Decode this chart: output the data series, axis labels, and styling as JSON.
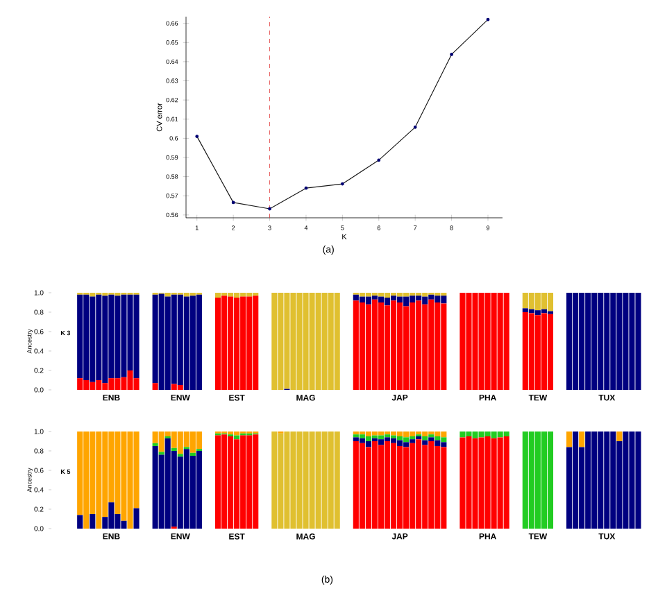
{
  "chart_data": [
    {
      "type": "line",
      "xlabel": "K",
      "ylabel": "CV error",
      "x": [
        1,
        2,
        3,
        4,
        5,
        6,
        7,
        8,
        9
      ],
      "xlim": [
        0.7,
        9.4
      ],
      "ylim": [
        0.5585,
        0.6635
      ],
      "xticks": [
        1,
        2,
        3,
        4,
        5,
        6,
        7,
        8,
        9
      ],
      "yticks": [
        0.56,
        0.57,
        0.58,
        0.59,
        0.6,
        0.61,
        0.62,
        0.63,
        0.64,
        0.65,
        0.66
      ],
      "marker": "circle",
      "line_style": "solid",
      "series": [
        {
          "color": "#1a1a1a",
          "values": [
            0.601,
            0.5665,
            0.5632,
            0.574,
            0.5762,
            0.5886,
            0.6058,
            0.6438,
            0.662
          ]
        }
      ],
      "ref_lines": [
        {
          "axis": "x",
          "value": 3,
          "color": "#e03030",
          "line_style": "dashed"
        }
      ],
      "annotations": [
        "(a)"
      ]
    },
    {
      "type": "bar",
      "stacked": true,
      "title": "K 3",
      "ylabel": "Ancestry",
      "ylim": [
        0,
        1
      ],
      "yticks": [
        {
          "value": 0,
          "label": "0.0"
        },
        {
          "value": 0.2,
          "label": "0.2"
        },
        {
          "value": 0.4,
          "label": "0.4"
        },
        {
          "value": 0.6,
          "label": "0.6"
        },
        {
          "value": 0.8,
          "label": "0.8"
        },
        {
          "value": 1,
          "label": "1.0"
        }
      ],
      "categories": [
        null,
        null,
        null,
        null,
        null,
        "ENB",
        null,
        null,
        null,
        null,
        null,
        null,
        null,
        null,
        null,
        null,
        "ENW",
        null,
        null,
        null,
        null,
        null,
        null,
        null,
        null,
        "EST",
        null,
        null,
        null,
        null,
        null,
        null,
        null,
        null,
        null,
        null,
        "MAG",
        null,
        null,
        null,
        null,
        null,
        null,
        null,
        null,
        null,
        null,
        null,
        null,
        null,
        null,
        "JAP",
        null,
        null,
        null,
        null,
        null,
        null,
        null,
        null,
        null,
        null,
        null,
        null,
        null,
        "PHA",
        null,
        null,
        null,
        null,
        null,
        null,
        null,
        "TEW",
        null,
        null,
        null,
        null,
        null,
        null,
        null,
        null,
        null,
        null,
        "TUX",
        null,
        null,
        null,
        null,
        null
      ],
      "series": [
        {
          "color": "#ff0000",
          "values": [
            0.12,
            0.1,
            0.08,
            0.1,
            0.07,
            0.12,
            0.12,
            0.13,
            0.2,
            0.12,
            null,
            null,
            0.07,
            0,
            0,
            0.06,
            0.05,
            0,
            0,
            0,
            null,
            null,
            0.95,
            0.97,
            0.96,
            0.95,
            0.96,
            0.96,
            0.97,
            null,
            null,
            0,
            0,
            0,
            0,
            0,
            0,
            0,
            0,
            0,
            0,
            0,
            null,
            null,
            0.92,
            0.9,
            0.88,
            0.93,
            0.9,
            0.87,
            0.92,
            0.9,
            0.86,
            0.9,
            0.92,
            0.88,
            0.93,
            0.9,
            0.89,
            null,
            null,
            1,
            1,
            1,
            1,
            1,
            1,
            1,
            1,
            null,
            null,
            0.8,
            0.79,
            0.77,
            0.79,
            0.78,
            null,
            null,
            0,
            0,
            0,
            0,
            0,
            0,
            0,
            0,
            0,
            0,
            0,
            0
          ]
        },
        {
          "color": "#000080",
          "values": [
            0.86,
            0.88,
            0.88,
            0.88,
            0.9,
            0.86,
            0.85,
            0.85,
            0.78,
            0.86,
            null,
            null,
            0.91,
            0.99,
            0.96,
            0.92,
            0.93,
            0.96,
            0.97,
            0.98,
            null,
            null,
            0,
            0,
            0,
            0,
            0,
            0,
            0,
            null,
            null,
            0,
            0,
            0.01,
            0,
            0,
            0,
            0,
            0,
            0,
            0,
            0,
            null,
            null,
            0.06,
            0.06,
            0.08,
            0.04,
            0.06,
            0.08,
            0.05,
            0.06,
            0.1,
            0.07,
            0.05,
            0.08,
            0.05,
            0.07,
            0.08,
            null,
            null,
            0,
            0,
            0,
            0,
            0,
            0,
            0,
            0,
            null,
            null,
            0.04,
            0.04,
            0.05,
            0.04,
            0.03,
            null,
            null,
            1,
            1,
            1,
            1,
            1,
            1,
            1,
            1,
            1,
            1,
            1,
            1
          ]
        },
        {
          "color": "#e0c030",
          "values": [
            0.02,
            0.02,
            0.04,
            0.02,
            0.03,
            0.02,
            0.03,
            0.02,
            0.02,
            0.02,
            null,
            null,
            0.02,
            0.01,
            0.04,
            0.02,
            0.02,
            0.04,
            0.03,
            0.02,
            null,
            null,
            0.05,
            0.03,
            0.04,
            0.05,
            0.04,
            0.04,
            0.03,
            null,
            null,
            1,
            1,
            0.99,
            1,
            1,
            1,
            1,
            1,
            1,
            1,
            1,
            null,
            null,
            0.02,
            0.04,
            0.04,
            0.03,
            0.04,
            0.05,
            0.03,
            0.04,
            0.04,
            0.03,
            0.03,
            0.04,
            0.02,
            0.03,
            0.03,
            null,
            null,
            0,
            0,
            0,
            0,
            0,
            0,
            0,
            0,
            null,
            null,
            0.16,
            0.17,
            0.18,
            0.17,
            0.19,
            null,
            null,
            0,
            0,
            0,
            0,
            0,
            0,
            0,
            0,
            0,
            0,
            0,
            0
          ]
        }
      ]
    },
    {
      "type": "bar",
      "stacked": true,
      "title": "K 5",
      "ylabel": "Ancestry",
      "ylim": [
        0,
        1
      ],
      "yticks": [
        {
          "value": 0,
          "label": "0.0"
        },
        {
          "value": 0.2,
          "label": "0.2"
        },
        {
          "value": 0.4,
          "label": "0.4"
        },
        {
          "value": 0.6,
          "label": "0.6"
        },
        {
          "value": 0.8,
          "label": "0.8"
        },
        {
          "value": 1,
          "label": "1.0"
        }
      ],
      "categories": [
        null,
        null,
        null,
        null,
        null,
        "ENB",
        null,
        null,
        null,
        null,
        null,
        null,
        null,
        null,
        null,
        null,
        "ENW",
        null,
        null,
        null,
        null,
        null,
        null,
        null,
        null,
        "EST",
        null,
        null,
        null,
        null,
        null,
        null,
        null,
        null,
        null,
        null,
        "MAG",
        null,
        null,
        null,
        null,
        null,
        null,
        null,
        null,
        null,
        null,
        null,
        null,
        null,
        null,
        "JAP",
        null,
        null,
        null,
        null,
        null,
        null,
        null,
        null,
        null,
        null,
        null,
        null,
        null,
        "PHA",
        null,
        null,
        null,
        null,
        null,
        null,
        null,
        "TEW",
        null,
        null,
        null,
        null,
        null,
        null,
        null,
        null,
        null,
        null,
        "TUX",
        null,
        null,
        null,
        null,
        null
      ],
      "series": [
        {
          "color": "#ff0000",
          "values": [
            0,
            0,
            0,
            0,
            0,
            0,
            0,
            0,
            0,
            0,
            null,
            null,
            0,
            0,
            0,
            0.02,
            0,
            0,
            0,
            0,
            null,
            null,
            0.96,
            0.97,
            0.95,
            0.92,
            0.96,
            0.96,
            0.97,
            null,
            null,
            0,
            0,
            0,
            0,
            0,
            0,
            0,
            0,
            0,
            0,
            0,
            null,
            null,
            0.9,
            0.88,
            0.84,
            0.9,
            0.86,
            0.9,
            0.88,
            0.85,
            0.84,
            0.88,
            0.92,
            0.86,
            0.9,
            0.85,
            0.84,
            null,
            null,
            0.94,
            0.95,
            0.93,
            0.94,
            0.95,
            0.93,
            0.94,
            0.95,
            null,
            null,
            0,
            0,
            0,
            0,
            0,
            null,
            null,
            0,
            0,
            0,
            0,
            0,
            0,
            0,
            0,
            0,
            0,
            0,
            0
          ]
        },
        {
          "color": "#000080",
          "values": [
            0.14,
            0,
            0.15,
            0,
            0.12,
            0.27,
            0.15,
            0.08,
            0,
            0.21,
            null,
            null,
            0.85,
            0.76,
            0.93,
            0.78,
            0.74,
            0.82,
            0.75,
            0.8,
            null,
            null,
            0,
            0,
            0,
            0,
            0,
            0,
            0,
            null,
            null,
            0,
            0,
            0,
            0,
            0,
            0,
            0,
            0,
            0,
            0,
            0,
            null,
            null,
            0.04,
            0.05,
            0.06,
            0.03,
            0.06,
            0.04,
            0.05,
            0.06,
            0.05,
            0.04,
            0.03,
            0.05,
            0.04,
            0.06,
            0.05,
            null,
            null,
            0,
            0,
            0,
            0,
            0,
            0,
            0,
            0,
            null,
            null,
            0,
            0,
            0,
            0,
            0,
            null,
            null,
            0.84,
            1,
            0.84,
            1,
            1,
            1,
            1,
            1,
            0.9,
            1,
            1,
            1
          ]
        },
        {
          "color": "#e0c030",
          "values": [
            0,
            0,
            0,
            0,
            0,
            0,
            0,
            0,
            0,
            0,
            null,
            null,
            0,
            0,
            0,
            0,
            0,
            0,
            0,
            0,
            null,
            null,
            0,
            0,
            0,
            0,
            0,
            0,
            0,
            null,
            null,
            1,
            0.98,
            1,
            1,
            1,
            1,
            1,
            1,
            1,
            1,
            1,
            null,
            null,
            0,
            0,
            0,
            0,
            0,
            0,
            0,
            0,
            0,
            0,
            0,
            0,
            0,
            0,
            0,
            null,
            null,
            0,
            0,
            0,
            0,
            0,
            0,
            0,
            0,
            null,
            null,
            0,
            0,
            0,
            0,
            0,
            null,
            null,
            0,
            0,
            0,
            0,
            0,
            0,
            0,
            0,
            0,
            0,
            0,
            0
          ]
        },
        {
          "color": "#22cc22",
          "values": [
            0,
            0,
            0,
            0,
            0,
            0,
            0,
            0,
            0,
            0,
            null,
            null,
            0.03,
            0.03,
            0.02,
            0.03,
            0.03,
            0.02,
            0.03,
            0.02,
            null,
            null,
            0.02,
            0.01,
            0.02,
            0.04,
            0.02,
            0.02,
            0.01,
            null,
            null,
            0,
            0,
            0,
            0,
            0,
            0,
            0,
            0,
            0,
            0,
            0,
            null,
            null,
            0.03,
            0.04,
            0.05,
            0.03,
            0.04,
            0.03,
            0.03,
            0.04,
            0.05,
            0.03,
            0.02,
            0.04,
            0.03,
            0.04,
            0.05,
            null,
            null,
            0.06,
            0.05,
            0.07,
            0.06,
            0.05,
            0.07,
            0.06,
            0.05,
            null,
            null,
            1,
            1,
            1,
            1,
            1,
            null,
            null,
            0,
            0,
            0,
            0,
            0,
            0,
            0,
            0,
            0,
            0,
            0,
            0
          ]
        },
        {
          "color": "#ffa500",
          "values": [
            0.86,
            1,
            0.85,
            1,
            0.88,
            0.73,
            0.85,
            0.92,
            1,
            0.79,
            null,
            null,
            0.12,
            0.21,
            0.05,
            0.17,
            0.23,
            0.16,
            0.22,
            0.18,
            null,
            null,
            0.02,
            0.02,
            0.03,
            0.04,
            0.02,
            0.02,
            0.02,
            null,
            null,
            0,
            0.02,
            0,
            0,
            0,
            0,
            0,
            0,
            0,
            0,
            0,
            null,
            null,
            0.03,
            0.03,
            0.05,
            0.04,
            0.04,
            0.03,
            0.04,
            0.05,
            0.06,
            0.05,
            0.03,
            0.05,
            0.03,
            0.05,
            0.06,
            null,
            null,
            0,
            0,
            0,
            0,
            0,
            0,
            0,
            0,
            null,
            null,
            0,
            0,
            0,
            0,
            0,
            null,
            null,
            0.16,
            0,
            0.16,
            0,
            0,
            0,
            0,
            0,
            0.1,
            0,
            0,
            0
          ]
        }
      ],
      "annotations": [
        "(b)"
      ]
    }
  ]
}
